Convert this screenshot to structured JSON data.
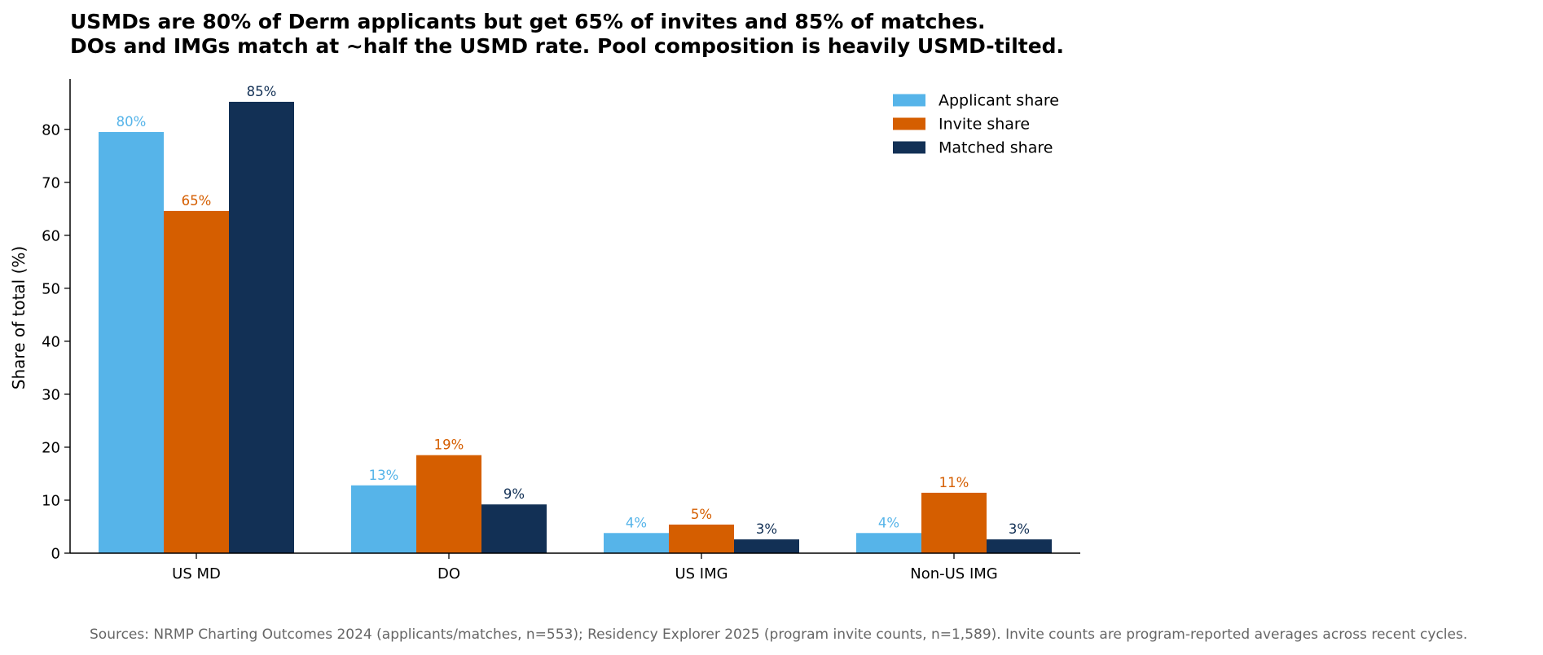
{
  "chart_data": {
    "type": "bar",
    "title_lines": [
      "USMDs are 80% of Derm applicants but get 65% of invites and 85% of matches.",
      "DOs and IMGs match at ~half the USMD rate. Pool composition is heavily USMD-tilted."
    ],
    "xlabel": "",
    "ylabel": "Share of total (%)",
    "ylim": [
      0,
      89.5
    ],
    "yticks": [
      0,
      10,
      20,
      30,
      40,
      50,
      60,
      70,
      80
    ],
    "categories": [
      "US MD",
      "DO",
      "US IMG",
      "Non-US IMG"
    ],
    "series": [
      {
        "name": "Applicant share",
        "color": "#56B4E9",
        "values": [
          79.5,
          12.8,
          3.8,
          3.8
        ],
        "labels": [
          "80%",
          "13%",
          "4%",
          "4%"
        ]
      },
      {
        "name": "Invite share",
        "color": "#D55E00",
        "values": [
          64.6,
          18.5,
          5.4,
          11.4
        ],
        "labels": [
          "65%",
          "19%",
          "5%",
          "11%"
        ]
      },
      {
        "name": "Matched share",
        "color": "#123055",
        "values": [
          85.2,
          9.2,
          2.6,
          2.6
        ],
        "labels": [
          "85%",
          "9%",
          "3%",
          "3%"
        ]
      }
    ],
    "legend_position": "top-right",
    "grid": false,
    "source_note": "Sources: NRMP Charting Outcomes 2024 (applicants/matches, n=553); Residency Explorer 2025 (program invite counts, n=1,589). Invite counts are program-reported averages across recent cycles."
  }
}
